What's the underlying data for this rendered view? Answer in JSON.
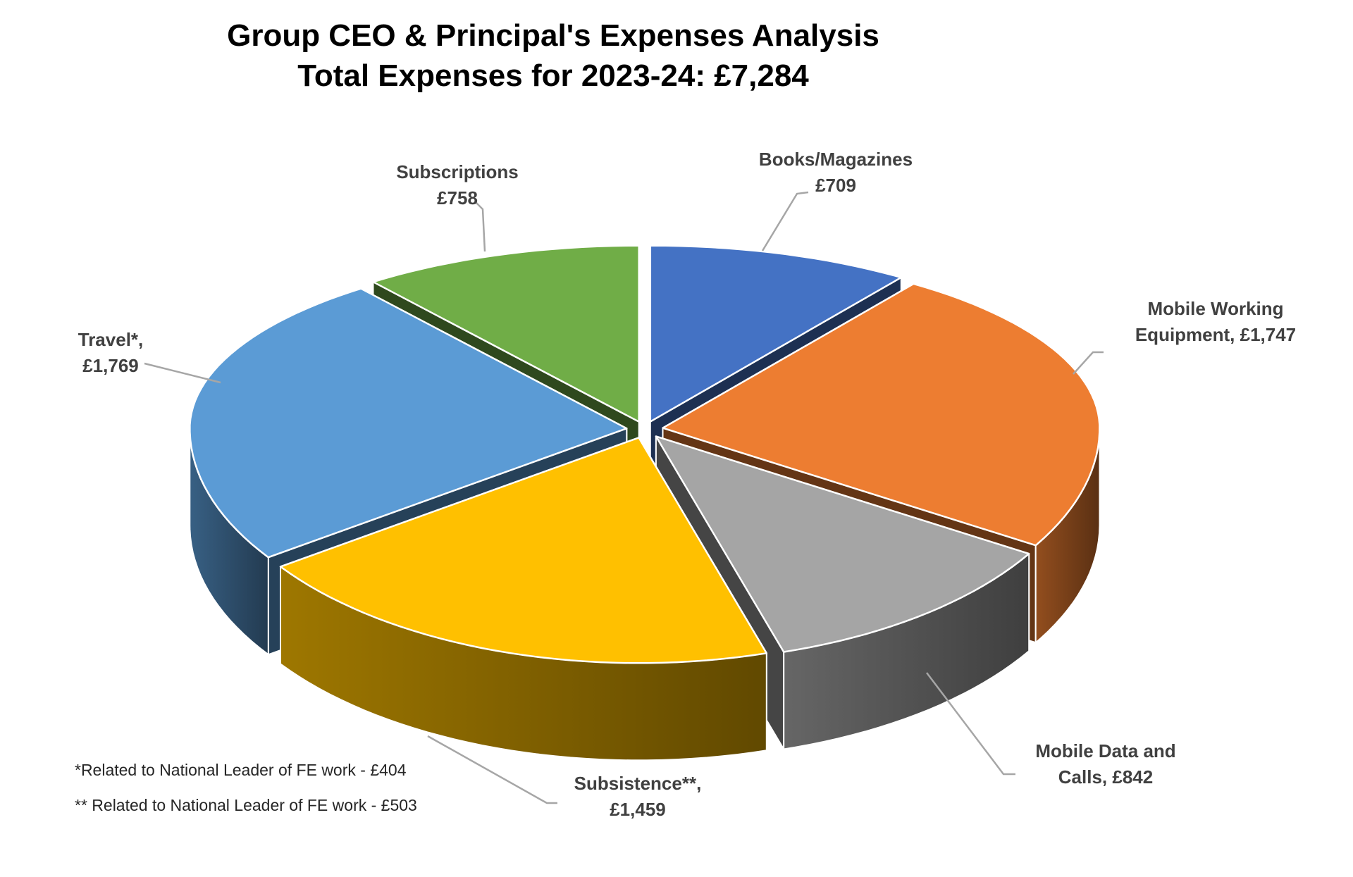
{
  "chart_data": {
    "type": "pie",
    "style": "3d-exploded",
    "title": "Group CEO & Principal's Expenses Analysis",
    "subtitle": "Total Expenses for 2023-24: £7,284",
    "total": 7284,
    "currency": "£",
    "legend_position": "none",
    "grid": false,
    "slices": [
      {
        "name": "Books/Magazines",
        "value": 709,
        "color": "#4472C4",
        "label_lines": [
          "Books/Magazines",
          "£709"
        ]
      },
      {
        "name": "Mobile Working Equipment",
        "value": 1747,
        "color": "#ED7D31",
        "label_lines": [
          "Mobile Working",
          "Equipment, £1,747"
        ]
      },
      {
        "name": "Mobile Data and Calls",
        "value": 842,
        "color": "#A5A5A5",
        "label_lines": [
          "Mobile Data and",
          "Calls, £842"
        ]
      },
      {
        "name": "Subsistence",
        "value": 1459,
        "color": "#FFC000",
        "label_lines": [
          "Subsistence**,",
          "£1,459"
        ]
      },
      {
        "name": "Travel",
        "value": 1769,
        "color": "#5B9BD5",
        "label_lines": [
          "Travel*,",
          "£1,769"
        ]
      },
      {
        "name": "Subscriptions",
        "value": 758,
        "color": "#70AD47",
        "label_lines": [
          "Subscriptions",
          "£758"
        ]
      }
    ],
    "footnotes": [
      "*Related to National Leader of FE work - £404",
      "** Related to National Leader of FE work - £503"
    ],
    "leader_line_color": "#A6A6A6",
    "label_color": "#404040",
    "title_color": "#000000"
  }
}
